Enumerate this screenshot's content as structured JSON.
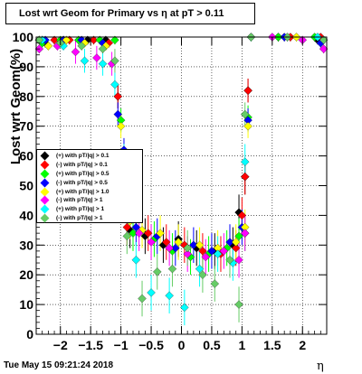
{
  "title": "Lost wrt Geom for Primary vs   η at pT > 0.11",
  "footer": "Tue May 15 09:21:24 2018",
  "chart_data": {
    "type": "scatter",
    "title": "Lost wrt Geom for Primary vs   η at pT > 0.11",
    "xlabel": "η",
    "ylabel": "Lost wrt Geom(%)",
    "xlim": [
      -2.4,
      2.4
    ],
    "ylim": [
      0,
      100
    ],
    "grid": true,
    "legend_position": "center-left",
    "x_ticks": [
      -2,
      -1.5,
      -1,
      -0.5,
      0,
      0.5,
      1,
      1.5,
      2
    ],
    "x_tick_labels": [
      "−2",
      "−1.5",
      "−1",
      "−0.5",
      "0",
      "0.5",
      "1",
      "1.5",
      "2"
    ],
    "y_ticks": [
      0,
      10,
      20,
      30,
      40,
      50,
      60,
      70,
      80,
      90,
      100
    ],
    "y_tick_labels": [
      "0",
      "10",
      "20",
      "30",
      "40",
      "50",
      "60",
      "70",
      "80",
      "90",
      "100"
    ],
    "series": [
      {
        "name": "(+) with pT/|q| > 0.1",
        "color": "#000000",
        "x": [
          -2.35,
          -2.25,
          -1.95,
          -1.55,
          -1.25,
          -1.05,
          -0.85,
          -0.6,
          -0.3,
          -0.05,
          0.25,
          0.55,
          0.85,
          0.95,
          1.05,
          1.1,
          1.6,
          2.25
        ],
        "y": [
          99,
          98,
          99,
          99,
          99,
          80,
          35,
          33,
          30,
          32,
          29,
          28,
          30,
          41,
          53,
          82,
          100,
          99
        ]
      },
      {
        "name": "(-) with pT/|q| > 0.1",
        "color": "#ff0000",
        "x": [
          -2.3,
          -2.1,
          -1.85,
          -1.45,
          -1.2,
          -1.05,
          -0.9,
          -0.55,
          -0.25,
          0.05,
          0.35,
          0.65,
          0.9,
          1.0,
          1.05,
          1.1,
          1.8,
          2.3
        ],
        "y": [
          99,
          99,
          99,
          99,
          98,
          80,
          36,
          34,
          31,
          30,
          28,
          27,
          29,
          40,
          53,
          82,
          100,
          100
        ]
      },
      {
        "name": "(+) with pT/|q| > 0.5",
        "color": "#00ff00",
        "x": [
          -2.3,
          -2.0,
          -1.7,
          -1.35,
          -1.1,
          -1.0,
          -0.8,
          -0.45,
          -0.15,
          0.15,
          0.45,
          0.75,
          0.95,
          1.05,
          1.1,
          1.6,
          2.2
        ],
        "y": [
          98,
          99,
          99,
          99,
          99,
          72,
          34,
          32,
          28,
          26,
          27,
          29,
          33,
          34,
          73,
          100,
          100
        ]
      },
      {
        "name": "(-) with pT/|q| > 0.5",
        "color": "#0000ff",
        "x": [
          -2.25,
          -1.95,
          -1.65,
          -1.3,
          -1.05,
          -0.95,
          -0.75,
          -0.4,
          -0.1,
          0.2,
          0.5,
          0.8,
          1.0,
          1.1,
          1.7,
          2.3
        ],
        "y": [
          99,
          99,
          99,
          98,
          74,
          62,
          36,
          33,
          29,
          30,
          28,
          31,
          36,
          72,
          100,
          98
        ]
      },
      {
        "name": "(+) with pT/|q| > 1.0",
        "color": "#ffff00",
        "x": [
          -2.2,
          -1.9,
          -1.6,
          -1.25,
          -1.0,
          -0.85,
          -0.65,
          -0.35,
          -0.05,
          0.3,
          0.6,
          0.9,
          1.05,
          1.1,
          1.9
        ],
        "y": [
          97,
          99,
          98,
          97,
          70,
          38,
          35,
          34,
          31,
          30,
          29,
          31,
          36,
          70,
          100
        ]
      },
      {
        "name": "(-) with pT/|q| > 1",
        "color": "#ff00ff",
        "x": [
          -2.35,
          -2.05,
          -1.75,
          -1.4,
          -1.15,
          -0.95,
          -0.7,
          -0.5,
          -0.2,
          0.1,
          0.4,
          0.7,
          0.95,
          1.05,
          1.5,
          2.0,
          2.35
        ],
        "y": [
          96,
          97,
          95,
          93,
          91,
          55,
          34,
          31,
          29,
          27,
          26,
          28,
          25,
          34,
          100,
          99,
          96
        ]
      },
      {
        "name": "(+) with pT/|q| > 1",
        "color": "#00ffff",
        "x": [
          -2.3,
          -1.95,
          -1.6,
          -1.3,
          -1.1,
          -0.95,
          -0.75,
          -0.5,
          -0.2,
          0.05,
          0.3,
          0.6,
          0.85,
          1.05,
          1.15,
          2.25
        ],
        "y": [
          99,
          97,
          92,
          91,
          84,
          60,
          25,
          14,
          13,
          9,
          22,
          27,
          24,
          58,
          100,
          100
        ]
      },
      {
        "name": "(-) with pT/|q| > 1",
        "color": "#66cc66",
        "x": [
          -2.35,
          -2.0,
          -1.65,
          -1.3,
          -1.1,
          -0.9,
          -0.65,
          -0.4,
          -0.15,
          0.1,
          0.35,
          0.55,
          0.8,
          0.95,
          1.05,
          1.15,
          1.75,
          2.35
        ],
        "y": [
          99,
          98,
          97,
          96,
          92,
          33,
          12,
          21,
          22,
          29,
          20,
          17,
          25,
          10,
          74,
          100,
          100,
          99
        ]
      }
    ]
  }
}
